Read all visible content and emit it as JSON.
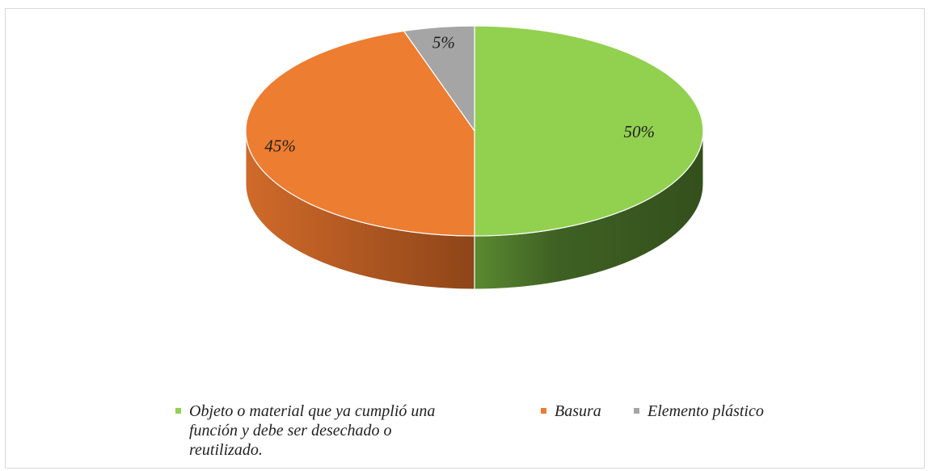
{
  "chart_data": {
    "type": "pie",
    "style": "3d",
    "title": "",
    "slices": [
      {
        "label": "Objeto o material que ya cumplió una función y debe ser desechado o reutilizado.",
        "value": 50,
        "data_label": "50%",
        "color": "#92d050",
        "side_dark": "#3c5a22",
        "side_light": "#4e7a2c"
      },
      {
        "label": "Basura",
        "value": 45,
        "data_label": "45%",
        "color": "#ed7d31",
        "side_dark": "#8e4519",
        "side_light": "#c45f24"
      },
      {
        "label": "Elemento plástico",
        "value": 5,
        "data_label": "5%",
        "color": "#a5a5a5",
        "side_dark": "#6e6e6e",
        "side_light": "#8a8a8a"
      }
    ],
    "legend_position": "bottom"
  },
  "legend": {
    "items": [
      {
        "line1": "Objeto o material que ya cumplió una",
        "line2": "función y debe ser desechado o",
        "line3": "reutilizado.",
        "color": "#92d050"
      },
      {
        "line1": "Basura",
        "line2": "",
        "line3": "",
        "color": "#ed7d31"
      },
      {
        "line1": "Elemento plástico",
        "line2": "",
        "line3": "",
        "color": "#a5a5a5"
      }
    ]
  }
}
